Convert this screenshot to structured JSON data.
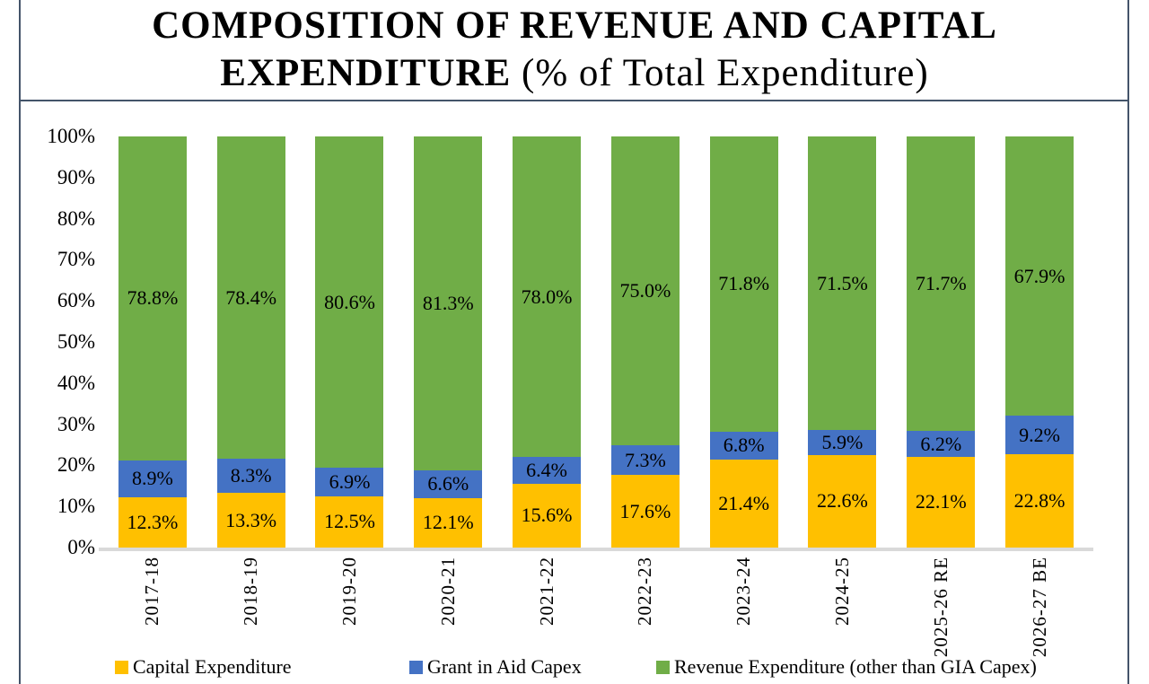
{
  "title": {
    "line1": "COMPOSITION OF REVENUE AND CAPITAL",
    "line2_bold": "EXPENDITURE",
    "line2_rest": " (% of Total Expenditure)"
  },
  "chart_data": {
    "type": "bar",
    "stacked": true,
    "title": "COMPOSITION OF REVENUE AND CAPITAL EXPENDITURE (% of Total Expenditure)",
    "categories": [
      "2017-18",
      "2018-19",
      "2019-20",
      "2020-21",
      "2021-22",
      "2022-23",
      "2023-24",
      "2024-25",
      "2025-26 RE",
      "2026-27 BE"
    ],
    "series": [
      {
        "name": "Capital Expenditure",
        "color": "#FFC000",
        "values": [
          12.3,
          13.3,
          12.5,
          12.1,
          15.6,
          17.6,
          21.4,
          22.6,
          22.1,
          22.8
        ]
      },
      {
        "name": "Grant in Aid Capex",
        "color": "#4472C4",
        "values": [
          8.9,
          8.3,
          6.9,
          6.6,
          6.4,
          7.3,
          6.8,
          5.9,
          6.2,
          9.2
        ]
      },
      {
        "name": "Revenue Expenditure (other than GIA Capex)",
        "color": "#70AD47",
        "values": [
          78.8,
          78.4,
          80.6,
          81.3,
          78.0,
          75.0,
          71.8,
          71.5,
          71.7,
          67.9
        ]
      }
    ],
    "value_suffix": "%",
    "yticks": [
      "0%",
      "10%",
      "20%",
      "30%",
      "40%",
      "50%",
      "60%",
      "70%",
      "80%",
      "90%",
      "100%"
    ],
    "ylim": [
      0,
      100
    ],
    "grid": false,
    "legend_position": "bottom",
    "axis_line_color": "#D9D9D9",
    "frame_color": "#44546A"
  }
}
